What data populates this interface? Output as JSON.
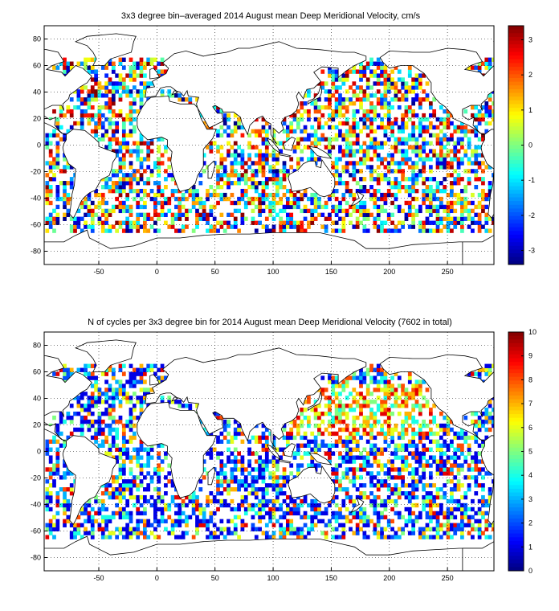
{
  "chart_data": [
    {
      "type": "heatmap",
      "title": "3x3 degree bin–averaged 2014 August mean Deep Meridional Velocity, cm/s",
      "xlabel": "",
      "ylabel": "",
      "xlim": [
        -97,
        290
      ],
      "ylim": [
        -90,
        90
      ],
      "x_ticks": [
        "-50",
        "0",
        "50",
        "100",
        "150",
        "200",
        "250"
      ],
      "x_tick_values": [
        -50,
        0,
        50,
        100,
        150,
        200,
        250
      ],
      "y_ticks": [
        "80",
        "60",
        "40",
        "20",
        "0",
        "-20",
        "-40",
        "-60",
        "-80"
      ],
      "y_tick_values": [
        80,
        60,
        40,
        20,
        0,
        -20,
        -40,
        -60,
        -80
      ],
      "grid": true,
      "bin_size_deg": 3,
      "colorbar": {
        "range": [
          -3.4,
          3.4
        ],
        "ticks": [
          "3",
          "2",
          "1",
          "0",
          "-1",
          "-2",
          "-3"
        ],
        "tick_values": [
          3,
          2,
          1,
          0,
          -1,
          -2,
          -3
        ],
        "colormap": "jet"
      }
    },
    {
      "type": "heatmap",
      "title": "N of cycles per 3x3 degree bin for 2014 August mean Deep Meridional Velocity (7602 in total)",
      "xlabel": "",
      "ylabel": "",
      "xlim": [
        -97,
        290
      ],
      "ylim": [
        -90,
        90
      ],
      "x_ticks": [
        "-50",
        "0",
        "50",
        "100",
        "150",
        "200",
        "250"
      ],
      "x_tick_values": [
        -50,
        0,
        50,
        100,
        150,
        200,
        250
      ],
      "y_ticks": [
        "80",
        "60",
        "40",
        "20",
        "0",
        "-20",
        "-40",
        "-60",
        "-80"
      ],
      "y_tick_values": [
        80,
        60,
        40,
        20,
        0,
        -20,
        -40,
        -60,
        -80
      ],
      "grid": true,
      "bin_size_deg": 3,
      "total_cycles": 7602,
      "colorbar": {
        "range": [
          0,
          10
        ],
        "ticks": [
          "10",
          "9",
          "8",
          "7",
          "6",
          "5",
          "4",
          "3",
          "2",
          "1",
          "0"
        ],
        "tick_values": [
          10,
          9,
          8,
          7,
          6,
          5,
          4,
          3,
          2,
          1,
          0
        ],
        "colormap": "jet"
      }
    }
  ]
}
